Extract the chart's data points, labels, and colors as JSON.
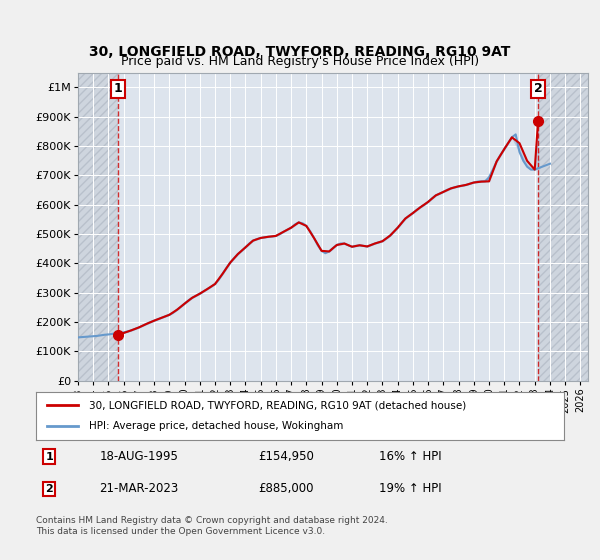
{
  "title_line1": "30, LONGFIELD ROAD, TWYFORD, READING, RG10 9AT",
  "title_line2": "Price paid vs. HM Land Registry's House Price Index (HPI)",
  "ylabel": "",
  "xlim_start": 1993.0,
  "xlim_end": 2026.5,
  "ylim_bottom": 0,
  "ylim_top": 1050000,
  "yticks": [
    0,
    100000,
    200000,
    300000,
    400000,
    500000,
    600000,
    700000,
    800000,
    900000,
    1000000
  ],
  "ytick_labels": [
    "£0",
    "£100K",
    "£200K",
    "£300K",
    "£400K",
    "£500K",
    "£600K",
    "£700K",
    "£800K",
    "£900K",
    "£1M"
  ],
  "xticks": [
    1993,
    1994,
    1995,
    1996,
    1997,
    1998,
    1999,
    2000,
    2001,
    2002,
    2003,
    2004,
    2005,
    2006,
    2007,
    2008,
    2009,
    2010,
    2011,
    2012,
    2013,
    2014,
    2015,
    2016,
    2017,
    2018,
    2019,
    2020,
    2021,
    2022,
    2023,
    2024,
    2025,
    2026
  ],
  "hpi_color": "#6699cc",
  "price_color": "#cc0000",
  "sale1_x": 1995.63,
  "sale1_y": 154950,
  "sale2_x": 2023.22,
  "sale2_y": 885000,
  "sale1_label": "1",
  "sale2_label": "2",
  "legend_line1": "30, LONGFIELD ROAD, TWYFORD, READING, RG10 9AT (detached house)",
  "legend_line2": "HPI: Average price, detached house, Wokingham",
  "table_row1": [
    "1",
    "18-AUG-1995",
    "£154,950",
    "16% ↑ HPI"
  ],
  "table_row2": [
    "2",
    "21-MAR-2023",
    "£885,000",
    "19% ↑ HPI"
  ],
  "footnote": "Contains HM Land Registry data © Crown copyright and database right 2024.\nThis data is licensed under the Open Government Licence v3.0.",
  "background_color": "#e8ecf0",
  "plot_bg_color": "#dde4ed",
  "hatch_color": "#c8cfd8",
  "grid_color": "#ffffff",
  "hpi_data_x": [
    1993.0,
    1993.25,
    1993.5,
    1993.75,
    1994.0,
    1994.25,
    1994.5,
    1994.75,
    1995.0,
    1995.25,
    1995.5,
    1995.75,
    1996.0,
    1996.25,
    1996.5,
    1996.75,
    1997.0,
    1997.25,
    1997.5,
    1997.75,
    1998.0,
    1998.25,
    1998.5,
    1998.75,
    1999.0,
    1999.25,
    1999.5,
    1999.75,
    2000.0,
    2000.25,
    2000.5,
    2000.75,
    2001.0,
    2001.25,
    2001.5,
    2001.75,
    2002.0,
    2002.25,
    2002.5,
    2002.75,
    2003.0,
    2003.25,
    2003.5,
    2003.75,
    2004.0,
    2004.25,
    2004.5,
    2004.75,
    2005.0,
    2005.25,
    2005.5,
    2005.75,
    2006.0,
    2006.25,
    2006.5,
    2006.75,
    2007.0,
    2007.25,
    2007.5,
    2007.75,
    2008.0,
    2008.25,
    2008.5,
    2008.75,
    2009.0,
    2009.25,
    2009.5,
    2009.75,
    2010.0,
    2010.25,
    2010.5,
    2010.75,
    2011.0,
    2011.25,
    2011.5,
    2011.75,
    2012.0,
    2012.25,
    2012.5,
    2012.75,
    2013.0,
    2013.25,
    2013.5,
    2013.75,
    2014.0,
    2014.25,
    2014.5,
    2014.75,
    2015.0,
    2015.25,
    2015.5,
    2015.75,
    2016.0,
    2016.25,
    2016.5,
    2016.75,
    2017.0,
    2017.25,
    2017.5,
    2017.75,
    2018.0,
    2018.25,
    2018.5,
    2018.75,
    2019.0,
    2019.25,
    2019.5,
    2019.75,
    2020.0,
    2020.25,
    2020.5,
    2020.75,
    2021.0,
    2021.25,
    2021.5,
    2021.75,
    2022.0,
    2022.25,
    2022.5,
    2022.75,
    2023.0,
    2023.25,
    2023.5,
    2023.75,
    2024.0
  ],
  "hpi_data_y": [
    148000,
    149000,
    150000,
    151000,
    152000,
    153000,
    155000,
    157000,
    158000,
    160000,
    162000,
    163000,
    165000,
    168000,
    172000,
    177000,
    182000,
    188000,
    194000,
    200000,
    205000,
    210000,
    215000,
    220000,
    225000,
    232000,
    242000,
    252000,
    263000,
    274000,
    283000,
    290000,
    297000,
    305000,
    313000,
    321000,
    330000,
    345000,
    365000,
    385000,
    403000,
    418000,
    432000,
    443000,
    455000,
    468000,
    478000,
    483000,
    487000,
    489000,
    491000,
    492000,
    494000,
    500000,
    508000,
    515000,
    522000,
    533000,
    540000,
    537000,
    528000,
    510000,
    487000,
    462000,
    443000,
    435000,
    441000,
    453000,
    463000,
    468000,
    468000,
    462000,
    457000,
    460000,
    462000,
    460000,
    458000,
    463000,
    468000,
    472000,
    476000,
    485000,
    495000,
    508000,
    522000,
    538000,
    553000,
    563000,
    572000,
    583000,
    592000,
    600000,
    610000,
    622000,
    632000,
    638000,
    644000,
    651000,
    656000,
    660000,
    663000,
    665000,
    668000,
    672000,
    676000,
    679000,
    680000,
    680000,
    694000,
    720000,
    748000,
    770000,
    790000,
    810000,
    830000,
    840000,
    780000,
    750000,
    730000,
    720000,
    720000,
    725000,
    730000,
    735000,
    740000
  ],
  "price_data_x": [
    1995.63,
    2023.22
  ],
  "price_data_y": [
    154950,
    885000
  ],
  "price_line_x": [
    1995.63,
    1996.0,
    1996.5,
    1997.0,
    1997.5,
    1998.0,
    1998.5,
    1999.0,
    1999.5,
    2000.0,
    2000.5,
    2001.0,
    2001.5,
    2002.0,
    2002.5,
    2003.0,
    2003.5,
    2004.0,
    2004.5,
    2005.0,
    2005.5,
    2006.0,
    2006.5,
    2007.0,
    2007.5,
    2008.0,
    2008.5,
    2009.0,
    2009.5,
    2010.0,
    2010.5,
    2011.0,
    2011.5,
    2012.0,
    2012.5,
    2013.0,
    2013.5,
    2014.0,
    2014.5,
    2015.0,
    2015.5,
    2016.0,
    2016.5,
    2017.0,
    2017.5,
    2018.0,
    2018.5,
    2019.0,
    2019.5,
    2020.0,
    2020.5,
    2021.0,
    2021.5,
    2022.0,
    2022.5,
    2023.0,
    2023.22
  ],
  "price_line_y": [
    154950,
    163000,
    172000,
    182000,
    194000,
    205000,
    215000,
    225000,
    242000,
    263000,
    283000,
    297000,
    313000,
    330000,
    365000,
    403000,
    432000,
    455000,
    478000,
    487000,
    491000,
    494000,
    508000,
    522000,
    540000,
    528000,
    487000,
    443000,
    441000,
    463000,
    468000,
    457000,
    462000,
    458000,
    468000,
    476000,
    495000,
    522000,
    553000,
    572000,
    592000,
    610000,
    632000,
    644000,
    656000,
    663000,
    668000,
    676000,
    679000,
    680000,
    748000,
    790000,
    830000,
    810000,
    750000,
    720000,
    885000
  ]
}
